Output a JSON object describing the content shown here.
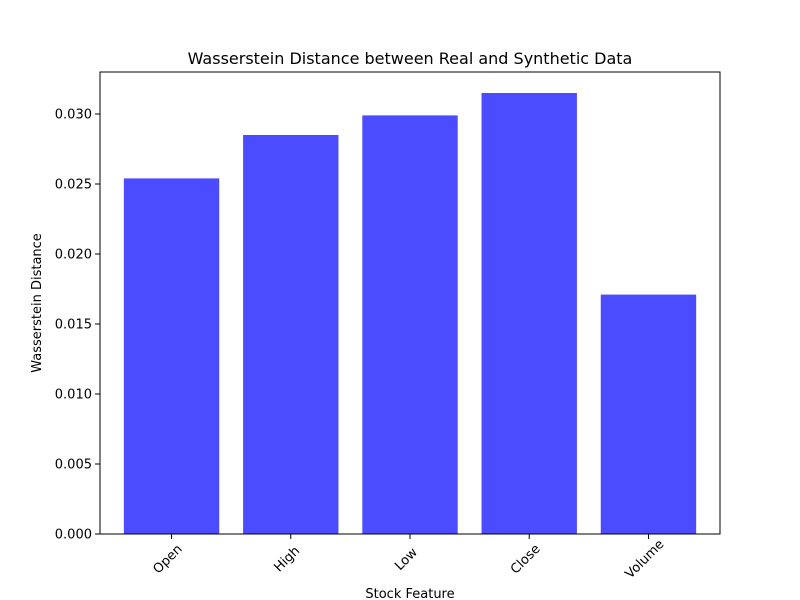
{
  "chart_data": {
    "type": "bar",
    "title": "Wasserstein Distance between Real and Synthetic Data",
    "xlabel": "Stock Feature",
    "ylabel": "Wasserstein Distance",
    "categories": [
      "Open",
      "High",
      "Low",
      "Close",
      "Volume"
    ],
    "values": [
      0.0254,
      0.0285,
      0.0299,
      0.0315,
      0.0171
    ],
    "ylim": [
      0,
      0.033
    ],
    "yticks": [
      0.0,
      0.005,
      0.01,
      0.015,
      0.02,
      0.025,
      0.03
    ],
    "ytick_labels": [
      "0.000",
      "0.005",
      "0.010",
      "0.015",
      "0.020",
      "0.025",
      "0.030"
    ],
    "bar_color": "#4b4bff",
    "grid": false,
    "legend": "none",
    "x_tick_rotation_deg": 45
  }
}
